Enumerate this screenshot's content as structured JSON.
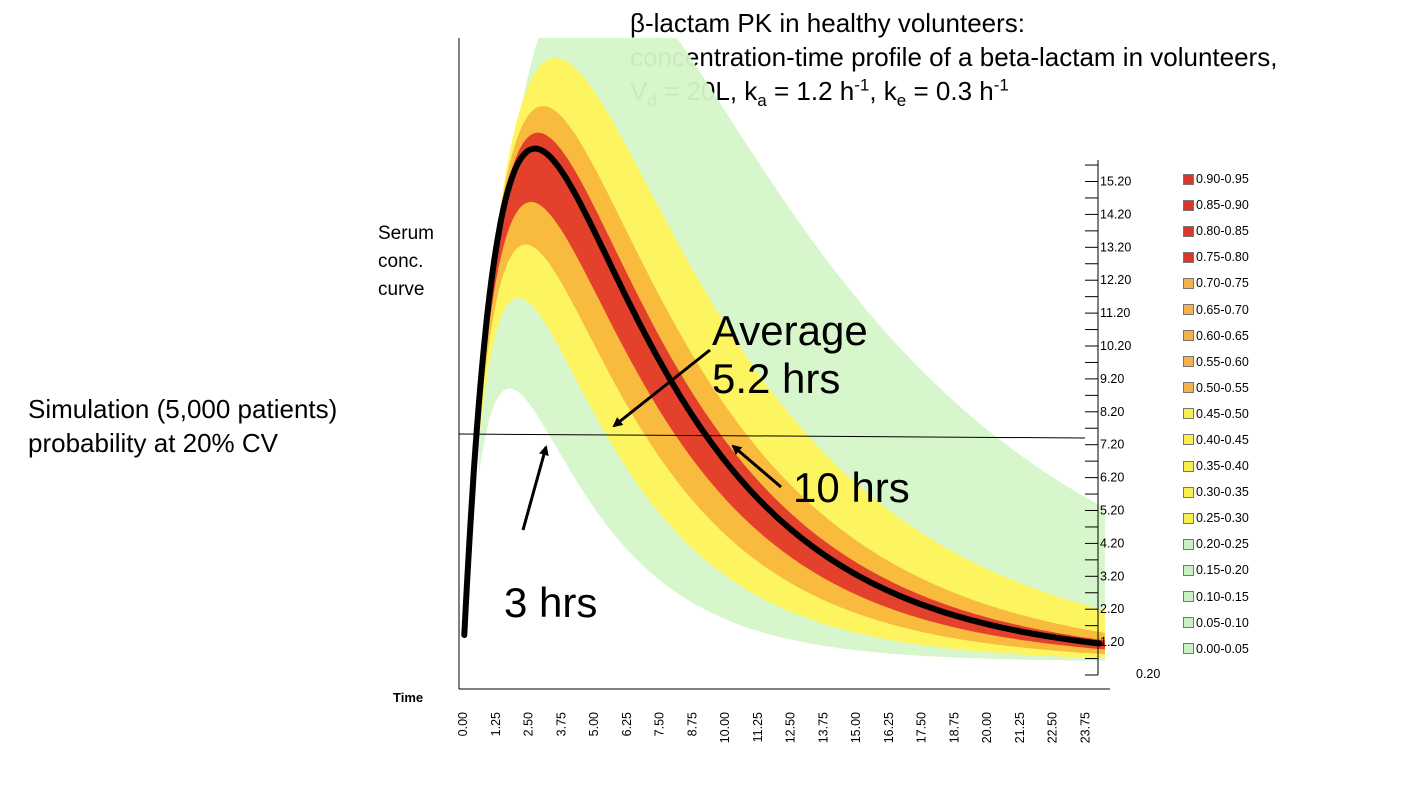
{
  "title": {
    "line1": "β-lactam PK in healthy volunteers:",
    "line2": "concentration-time profile of a beta-lactam in volunteers,",
    "line3": {
      "vd_prefix": "V",
      "vd_sub": "d",
      "vd_value": " = 20L, k",
      "ka_sub": "a",
      "ka_value": " = 1.2 h",
      "ka_sup": "-1",
      "ke_prefix": ", k",
      "ke_sub": "e",
      "ke_value": " = 0.3 h",
      "ke_sup": "-1"
    }
  },
  "simulation_label": {
    "line1": "Simulation (5,000 patients)",
    "line2": "probability at 20% CV"
  },
  "annotations": {
    "average_line1": "Average",
    "average_line2": "5.2 hrs",
    "ten_hrs": "10 hrs",
    "three_hrs": "3 hrs"
  },
  "colors": {
    "light_green": "#d6f5c9",
    "yellow": "#fff45a",
    "orange": "#f9b73b",
    "red": "#e23a2a",
    "legend_red": "#d9362e",
    "legend_orange": "#f3b24c",
    "legend_yellow": "#f7ee4f",
    "legend_green": "#ccefc7"
  },
  "chart_data": {
    "type": "heatmap",
    "title": "",
    "xlabel": "Time",
    "ylabel": "Serum conc. curve",
    "x_ticks": [
      "0.00",
      "1.25",
      "2.50",
      "3.75",
      "5.00",
      "6.25",
      "7.50",
      "8.75",
      "10.00",
      "11.25",
      "12.50",
      "13.75",
      "15.00",
      "16.25",
      "17.50",
      "18.75",
      "20.00",
      "21.25",
      "22.50",
      "23.75"
    ],
    "y_ticks": [
      "0.20",
      "1.20",
      "2.20",
      "3.20",
      "4.20",
      "5.20",
      "6.20",
      "7.20",
      "8.20",
      "9.20",
      "10.20",
      "11.20",
      "12.20",
      "13.20",
      "14.20",
      "15.20"
    ],
    "threshold": 8.0,
    "mean_curve": {
      "model": "one-compartment oral absorption",
      "ka": 1.2,
      "ke": 0.3,
      "peak_concentration": 16.2,
      "peak_time": 2.75,
      "start_concentration": 0.6
    },
    "time_above_threshold": {
      "average": "5.2 hrs",
      "lower": "3 hrs",
      "upper": "10 hrs"
    },
    "legend": [
      {
        "label": "0.90-0.95",
        "level": "red"
      },
      {
        "label": "0.85-0.90",
        "level": "red"
      },
      {
        "label": "0.80-0.85",
        "level": "red"
      },
      {
        "label": "0.75-0.80",
        "level": "red"
      },
      {
        "label": "0.70-0.75",
        "level": "orange"
      },
      {
        "label": "0.65-0.70",
        "level": "orange"
      },
      {
        "label": "0.60-0.65",
        "level": "orange"
      },
      {
        "label": "0.55-0.60",
        "level": "orange"
      },
      {
        "label": "0.50-0.55",
        "level": "orange"
      },
      {
        "label": "0.45-0.50",
        "level": "yellow"
      },
      {
        "label": "0.40-0.45",
        "level": "yellow"
      },
      {
        "label": "0.35-0.40",
        "level": "yellow"
      },
      {
        "label": "0.30-0.35",
        "level": "yellow"
      },
      {
        "label": "0.25-0.30",
        "level": "yellow"
      },
      {
        "label": "0.20-0.25",
        "level": "green"
      },
      {
        "label": "0.15-0.20",
        "level": "green"
      },
      {
        "label": "0.10-0.15",
        "level": "green"
      },
      {
        "label": "0.05-0.10",
        "level": "green"
      },
      {
        "label": "0.00-0.05",
        "level": "green"
      }
    ]
  }
}
